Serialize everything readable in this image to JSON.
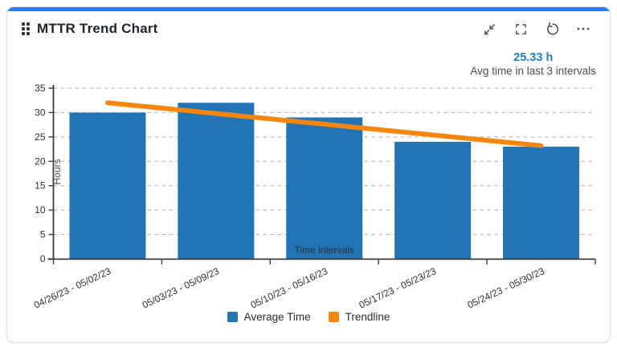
{
  "card": {
    "title": "MTTR Trend Chart",
    "accent_color": "#2b7cf2",
    "toolbar_icons": [
      "drag-handle-icon",
      "collapse-icon",
      "fullscreen-icon",
      "refresh-icon",
      "more-options-icon"
    ]
  },
  "stat": {
    "value": "25.33 h",
    "value_color": "#1e7fc2",
    "caption": "Avg time in last 3 intervals"
  },
  "chart_data": {
    "type": "bar",
    "categories": [
      "04/26/23 - 05/02/23",
      "05/03/23 - 05/09/23",
      "05/10/23 - 05/16/23",
      "05/17/23 - 05/23/23",
      "05/24/23 - 05/30/23"
    ],
    "series": [
      {
        "name": "Average Time",
        "type": "bar",
        "color": "#2274b5",
        "values": [
          30,
          32,
          29,
          24,
          23
        ]
      },
      {
        "name": "Trendline",
        "type": "line",
        "color": "#f8860d",
        "values": [
          32,
          29.8,
          27.6,
          25.4,
          23.2
        ]
      }
    ],
    "xlabel": "Time intervals",
    "ylabel": "Hours",
    "ylim": [
      0,
      35
    ],
    "ytick_step": 5,
    "grid": "dashed-horizontal",
    "grid_color": "#bdbdbd",
    "axis_color": "#3d3d3d",
    "tick_label_color": "#2f2f2f",
    "legend_position": "bottom"
  },
  "legend": {
    "items": [
      {
        "label": "Average Time",
        "color": "#2274b5"
      },
      {
        "label": "Trendline",
        "color": "#f8860d"
      }
    ]
  }
}
